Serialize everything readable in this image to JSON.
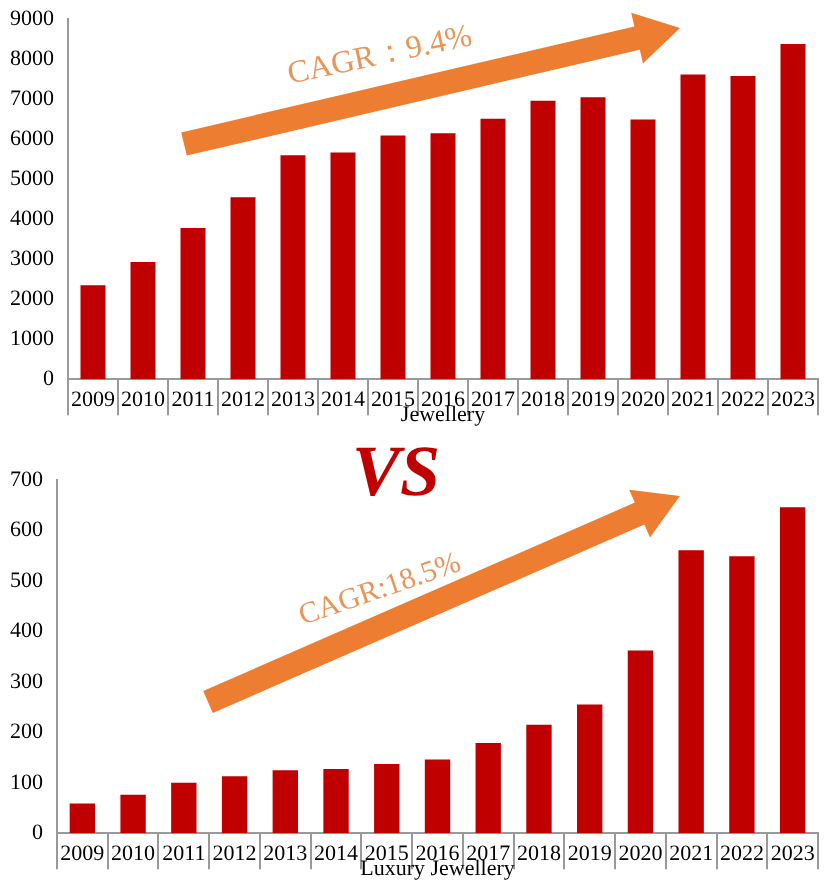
{
  "chart_data": [
    {
      "type": "bar",
      "xlabel": "Jewellery",
      "categories": [
        "2009",
        "2010",
        "2011",
        "2012",
        "2013",
        "2014",
        "2015",
        "2016",
        "2017",
        "2018",
        "2019",
        "2020",
        "2021",
        "2022",
        "2023"
      ],
      "values": [
        2350,
        2930,
        3780,
        4550,
        5600,
        5670,
        6090,
        6150,
        6510,
        6960,
        7050,
        6490,
        7620,
        7580,
        8380
      ],
      "color": "#c00000",
      "ylim": [
        0,
        9000
      ],
      "yticks": [
        0,
        1000,
        2000,
        3000,
        4000,
        5000,
        6000,
        7000,
        8000,
        9000
      ],
      "grid": false,
      "annotations": [
        "CAGR：9.4%"
      ]
    },
    {
      "type": "bar",
      "xlabel": "Luxury Jewellery",
      "categories": [
        "2009",
        "2010",
        "2011",
        "2012",
        "2013",
        "2014",
        "2015",
        "2016",
        "2017",
        "2018",
        "2019",
        "2020",
        "2021",
        "2022",
        "2023"
      ],
      "values": [
        59,
        76,
        100,
        113,
        125,
        127,
        137,
        146,
        179,
        215,
        255,
        362,
        561,
        549,
        646
      ],
      "color": "#c00000",
      "ylim": [
        0,
        700
      ],
      "yticks": [
        0,
        100,
        200,
        300,
        400,
        500,
        600,
        700
      ],
      "grid": false,
      "annotations": [
        "CAGR:18.5%",
        "VS"
      ]
    }
  ]
}
